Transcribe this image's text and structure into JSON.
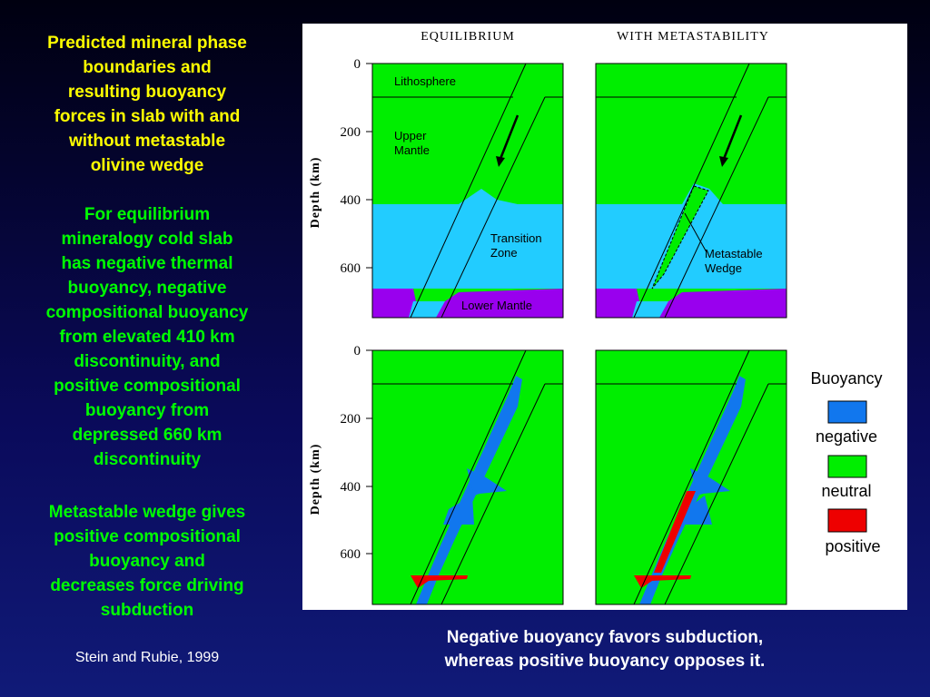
{
  "sidebar": {
    "heading": [
      "Predicted mineral phase",
      "boundaries and",
      "resulting buoyancy",
      "forces in slab with and",
      "without metastable",
      "olivine wedge"
    ],
    "paragraph_1": [
      "For equilibrium",
      "mineralogy cold slab",
      "has negative thermal",
      "buoyancy, negative",
      "compositional buoyancy",
      "from elevated 410 km",
      "discontinuity, and",
      "positive compositional",
      "buoyancy from",
      "depressed 660 km",
      "discontinuity"
    ],
    "paragraph_2": [
      "Metastable wedge gives",
      "positive compositional",
      "buoyancy and",
      "decreases force driving",
      "subduction"
    ],
    "credit": "Stein and Rubie, 1999"
  },
  "figure": {
    "columns": [
      "EQUILIBRIUM",
      "WITH METASTABILITY"
    ],
    "axis_label": "Depth (km)",
    "ticks": [
      "0",
      "200",
      "400",
      "600"
    ],
    "labels": {
      "lithosphere": "Lithosphere",
      "upper_mantle": [
        "Upper",
        "Mantle"
      ],
      "transition_zone": [
        "Transition",
        "Zone"
      ],
      "lower_mantle": "Lower Mantle",
      "wedge": [
        "Metastable",
        "Wedge"
      ]
    },
    "legend": {
      "title": "Buoyancy",
      "items": [
        "negative",
        "neutral",
        "positive"
      ]
    }
  },
  "caption": [
    "Negative buoyancy favors subduction,",
    "whereas positive buoyancy opposes it."
  ]
}
